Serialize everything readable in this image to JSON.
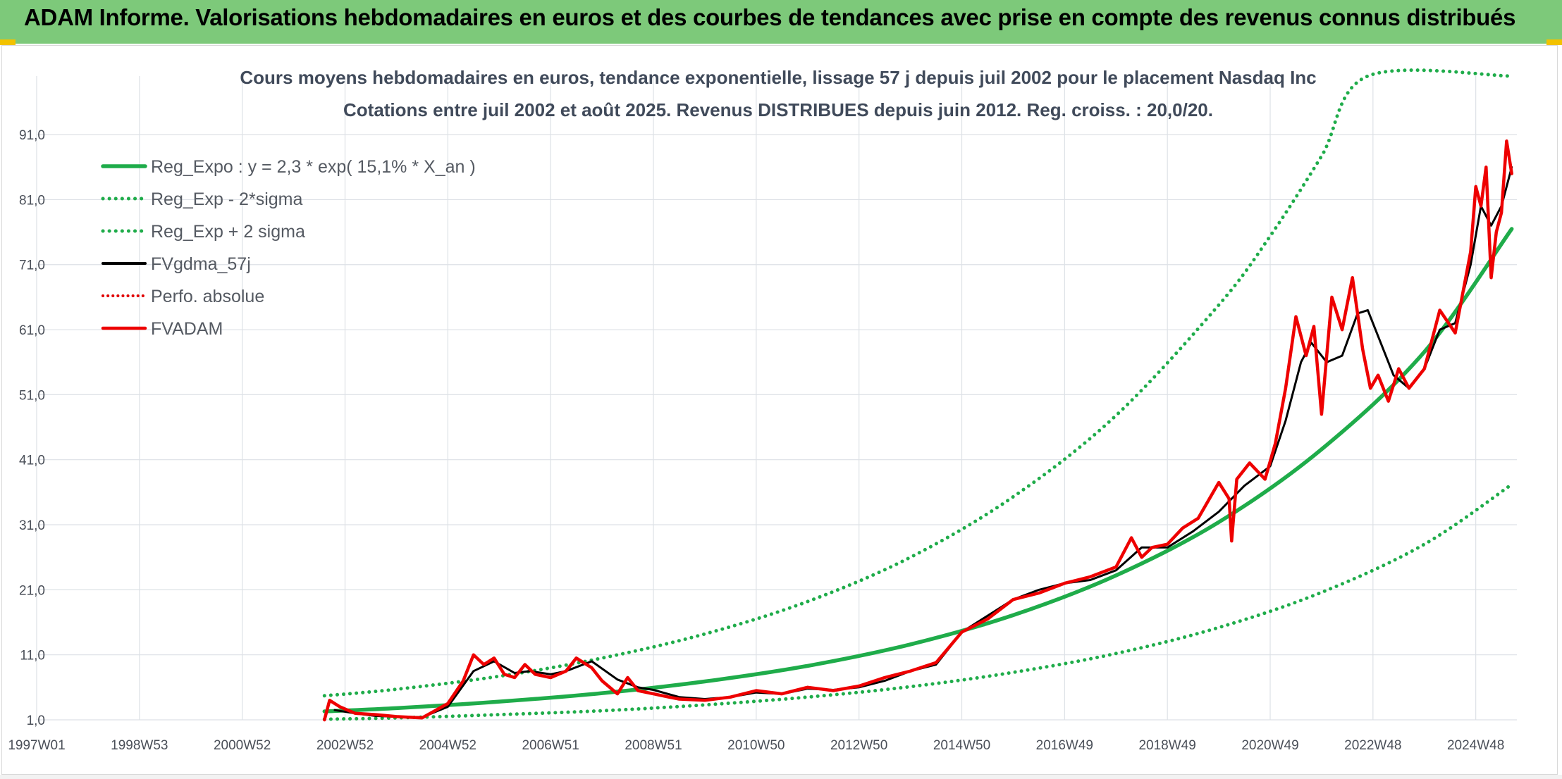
{
  "report_title": "ADAM Informe. Valorisations hebdomadaires en euros et des courbes de tendances avec prise en compte des revenus connus distribués",
  "chart_data": {
    "type": "line",
    "title_lines": [
      "Cours moyens hebdomadaires en euros, tendance exponentielle, lissage 57 j depuis juil 2002 pour le placement Nasdaq Inc",
      "Cotations entre juil 2002 et août 2025. Revenus DISTRIBUES depuis juin 2012. Reg. croiss. : 20,0/20."
    ],
    "xlim": [
      1997.0,
      2025.8
    ],
    "ylim": [
      1.0,
      100.0
    ],
    "x_ticks": [
      {
        "label": "1997W01",
        "x": 1997.0
      },
      {
        "label": "1998W53",
        "x": 1999.0
      },
      {
        "label": "2000W52",
        "x": 2001.0
      },
      {
        "label": "2002W52",
        "x": 2003.0
      },
      {
        "label": "2004W52",
        "x": 2005.0
      },
      {
        "label": "2006W51",
        "x": 2007.0
      },
      {
        "label": "2008W51",
        "x": 2009.0
      },
      {
        "label": "2010W50",
        "x": 2011.0
      },
      {
        "label": "2012W50",
        "x": 2013.0
      },
      {
        "label": "2014W50",
        "x": 2015.0
      },
      {
        "label": "2016W49",
        "x": 2017.0
      },
      {
        "label": "2018W49",
        "x": 2019.0
      },
      {
        "label": "2020W49",
        "x": 2021.0
      },
      {
        "label": "2022W48",
        "x": 2023.0
      },
      {
        "label": "2024W48",
        "x": 2025.0
      }
    ],
    "y_ticks": [
      "1,0",
      "11,0",
      "21,0",
      "31,0",
      "41,0",
      "51,0",
      "61,0",
      "71,0",
      "81,0",
      "91,0"
    ],
    "y_tick_values": [
      1,
      11,
      21,
      31,
      41,
      51,
      61,
      71,
      81,
      91
    ],
    "legend_position": "top-left",
    "grid": true,
    "series": [
      {
        "name": "Reg_Expo : y = 2,3 * exp( 15,1% *  X_an )",
        "key": "reg",
        "color": "#1fac4a",
        "style": "solid",
        "x": [
          2002.6,
          2004,
          2006,
          2008,
          2010,
          2012,
          2014,
          2016,
          2018,
          2020,
          2022,
          2024,
          2025.7
        ],
        "values": [
          2.3,
          2.8,
          3.8,
          5.1,
          6.9,
          9.3,
          12.6,
          17.1,
          23.2,
          31.4,
          42.6,
          57.6,
          76.5
        ]
      },
      {
        "name": "Reg_Exp - 2*sigma",
        "key": "low",
        "color": "#1fac4a",
        "style": "dotted",
        "x": [
          2002.6,
          2004,
          2006,
          2008,
          2010,
          2012,
          2014,
          2016,
          2018,
          2020,
          2022,
          2024,
          2025.7
        ],
        "values": [
          1.1,
          1.3,
          1.8,
          2.4,
          3.3,
          4.5,
          6.1,
          8.3,
          11.2,
          15.2,
          20.6,
          28.0,
          37.2
        ]
      },
      {
        "name": "Reg_Exp + 2 sigma",
        "key": "high",
        "color": "#1fac4a",
        "style": "dotted",
        "x": [
          2002.6,
          2004,
          2006,
          2008,
          2010,
          2012,
          2014,
          2016,
          2018,
          2020,
          2021,
          2022,
          2022.9,
          2025.7
        ],
        "values": [
          4.7,
          5.7,
          7.7,
          10.5,
          14.2,
          19.2,
          26.0,
          35.3,
          47.8,
          64.8,
          75.4,
          87.7,
          100.0,
          100.0
        ]
      },
      {
        "name": "FVgdma_57j",
        "key": "fvg",
        "color": "#000000",
        "style": "solid",
        "x": [
          2002.8,
          2003.2,
          2003.6,
          2004.0,
          2004.5,
          2005.0,
          2005.5,
          2005.9,
          2006.3,
          2006.6,
          2007.0,
          2007.3,
          2007.8,
          2008.3,
          2008.7,
          2009.0,
          2009.5,
          2010.0,
          2010.5,
          2011.0,
          2011.5,
          2012.0,
          2012.5,
          2013.0,
          2013.5,
          2014.0,
          2014.5,
          2015.0,
          2015.5,
          2016.0,
          2016.5,
          2017.0,
          2017.5,
          2018.0,
          2018.5,
          2019.0,
          2019.5,
          2020.0,
          2020.5,
          2021.0,
          2021.3,
          2021.6,
          2021.8,
          2022.1,
          2022.4,
          2022.7,
          2022.9,
          2023.1,
          2023.4,
          2023.7,
          2024.0,
          2024.3,
          2024.6,
          2024.9,
          2025.1,
          2025.3,
          2025.5,
          2025.7
        ],
        "values": [
          2.5,
          2.0,
          1.6,
          1.5,
          1.4,
          3.0,
          8.5,
          10.0,
          8.2,
          8.5,
          8.0,
          8.5,
          10.0,
          7.2,
          6.0,
          5.6,
          4.5,
          4.2,
          4.5,
          5.2,
          5.0,
          5.8,
          5.6,
          6.0,
          7.0,
          8.5,
          9.5,
          14.5,
          17.0,
          19.5,
          21.0,
          22.0,
          22.5,
          24.0,
          27.5,
          27.5,
          30.0,
          33.0,
          37.0,
          40.0,
          47.0,
          56.0,
          59.0,
          56.0,
          57.0,
          63.5,
          64.0,
          60.0,
          54.0,
          52.0,
          55.0,
          61.0,
          62.0,
          71.0,
          80.0,
          77.0,
          80.0,
          86.0
        ]
      },
      {
        "name": "Perfo. absolue",
        "key": "perfo",
        "color": "#e00000",
        "style": "dotted",
        "x": [],
        "values": []
      },
      {
        "name": "FVADAM",
        "key": "fva",
        "color": "#ee0000",
        "style": "solid",
        "x": [
          2002.6,
          2002.7,
          2002.9,
          2003.2,
          2003.6,
          2004.0,
          2004.5,
          2005.0,
          2005.3,
          2005.5,
          2005.7,
          2005.9,
          2006.1,
          2006.3,
          2006.5,
          2006.7,
          2007.0,
          2007.3,
          2007.5,
          2007.8,
          2008.0,
          2008.3,
          2008.5,
          2008.7,
          2009.0,
          2009.3,
          2009.5,
          2010.0,
          2010.5,
          2011.0,
          2011.5,
          2012.0,
          2012.5,
          2013.0,
          2013.5,
          2014.0,
          2014.5,
          2015.0,
          2015.5,
          2016.0,
          2016.5,
          2017.0,
          2017.5,
          2018.0,
          2018.3,
          2018.5,
          2018.7,
          2019.0,
          2019.3,
          2019.6,
          2020.0,
          2020.2,
          2020.25,
          2020.35,
          2020.6,
          2020.9,
          2021.1,
          2021.3,
          2021.5,
          2021.7,
          2021.85,
          2022.0,
          2022.2,
          2022.4,
          2022.6,
          2022.8,
          2022.95,
          2023.1,
          2023.3,
          2023.5,
          2023.7,
          2024.0,
          2024.3,
          2024.6,
          2024.9,
          2025.0,
          2025.1,
          2025.2,
          2025.3,
          2025.4,
          2025.5,
          2025.6,
          2025.7
        ],
        "values": [
          1.0,
          4.0,
          3.0,
          2.0,
          1.8,
          1.5,
          1.3,
          3.5,
          7.0,
          11.0,
          9.5,
          10.5,
          8.0,
          7.5,
          9.5,
          8.0,
          7.5,
          8.5,
          10.5,
          9.0,
          7.0,
          5.0,
          7.5,
          5.5,
          5.0,
          4.5,
          4.2,
          4.0,
          4.5,
          5.5,
          5.0,
          6.0,
          5.5,
          6.2,
          7.5,
          8.5,
          9.8,
          14.5,
          16.5,
          19.5,
          20.5,
          22.0,
          23.0,
          24.5,
          29.0,
          26.0,
          27.5,
          28.0,
          30.5,
          32.0,
          37.5,
          35.0,
          28.5,
          38.0,
          40.5,
          38.0,
          43.5,
          52.0,
          63.0,
          57.0,
          61.5,
          48.0,
          66.0,
          61.0,
          69.0,
          58.0,
          52.0,
          54.0,
          50.0,
          55.0,
          52.0,
          55.0,
          64.0,
          60.5,
          73.0,
          83.0,
          80.0,
          86.0,
          69.0,
          76.0,
          79.0,
          90.0,
          85.0
        ]
      }
    ]
  }
}
